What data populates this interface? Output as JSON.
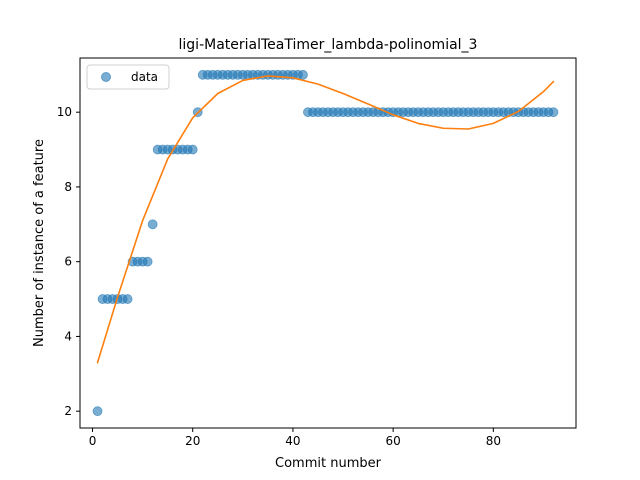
{
  "chart_data": {
    "type": "scatter",
    "title": "ligi-MaterialTeaTimer_lambda-polinomial_3",
    "xlabel": "Commit number",
    "ylabel": "Number of instance of a feature",
    "xlim": [
      -2.5,
      96.5
    ],
    "ylim": [
      1.55,
      11.45
    ],
    "xticks": [
      0,
      20,
      40,
      60,
      80
    ],
    "yticks": [
      2,
      4,
      6,
      8,
      10
    ],
    "grid": false,
    "legend_position": "top-left",
    "series": [
      {
        "name": "data",
        "kind": "scatter",
        "color": "#1f77b4",
        "x": [
          1,
          2,
          3,
          4,
          5,
          6,
          7,
          8,
          9,
          10,
          11,
          12,
          13,
          14,
          15,
          16,
          17,
          18,
          19,
          20,
          21,
          22,
          23,
          24,
          25,
          26,
          27,
          28,
          29,
          30,
          31,
          32,
          33,
          34,
          35,
          36,
          37,
          38,
          39,
          40,
          41,
          42,
          43,
          44,
          45,
          46,
          47,
          48,
          49,
          50,
          51,
          52,
          53,
          54,
          55,
          56,
          57,
          58,
          59,
          60,
          61,
          62,
          63,
          64,
          65,
          66,
          67,
          68,
          69,
          70,
          71,
          72,
          73,
          74,
          75,
          76,
          77,
          78,
          79,
          80,
          81,
          82,
          83,
          84,
          85,
          86,
          87,
          88,
          89,
          90,
          91,
          92
        ],
        "y": [
          2,
          5,
          5,
          5,
          5,
          5,
          5,
          6,
          6,
          6,
          6,
          7,
          9,
          9,
          9,
          9,
          9,
          9,
          9,
          9,
          10,
          11,
          11,
          11,
          11,
          11,
          11,
          11,
          11,
          11,
          11,
          11,
          11,
          11,
          11,
          11,
          11,
          11,
          11,
          11,
          11,
          11,
          10,
          10,
          10,
          10,
          10,
          10,
          10,
          10,
          10,
          10,
          10,
          10,
          10,
          10,
          10,
          10,
          10,
          10,
          10,
          10,
          10,
          10,
          10,
          10,
          10,
          10,
          10,
          10,
          10,
          10,
          10,
          10,
          10,
          10,
          10,
          10,
          10,
          10,
          10,
          10,
          10,
          10,
          10,
          10,
          10,
          10,
          10,
          10,
          10,
          10
        ]
      },
      {
        "kind": "line",
        "color": "#ff7f0e",
        "x": [
          1,
          5,
          10,
          15,
          20,
          25,
          30,
          35,
          40,
          45,
          50,
          55,
          60,
          65,
          70,
          75,
          80,
          85,
          90,
          92
        ],
        "y": [
          3.3,
          5.05,
          7.1,
          8.75,
          9.85,
          10.5,
          10.85,
          10.97,
          10.92,
          10.75,
          10.5,
          10.22,
          9.93,
          9.7,
          9.57,
          9.55,
          9.7,
          10.02,
          10.55,
          10.82
        ]
      }
    ]
  }
}
